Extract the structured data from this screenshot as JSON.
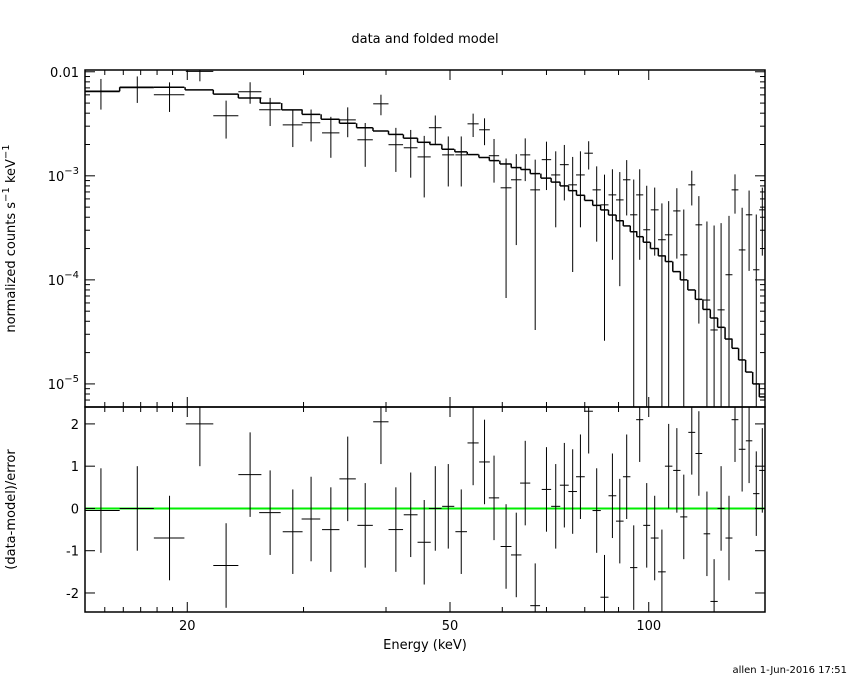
{
  "title": "data and folded model",
  "footer": "allen  1-Jun-2016 17:51",
  "chart_data": [
    {
      "type": "errorbar",
      "log_x": true,
      "log_y": true,
      "color": "#000000",
      "model_color": "#000000",
      "ylabel": [
        "normalized counts s",
        "−1",
        "  keV",
        "−1"
      ],
      "xlim": [
        14,
        150
      ],
      "ylim": [
        6e-06,
        0.0104
      ],
      "xticks": [
        20,
        50,
        100
      ],
      "xminorticks": [
        15,
        16,
        17,
        18,
        19,
        30,
        40,
        60,
        70,
        80,
        90
      ],
      "yticks": [
        0.01,
        {
          "value": 0.001,
          "label": "10",
          "exponent": "−3"
        },
        {
          "value": 0.0001,
          "label": "10",
          "exponent": "−4"
        },
        {
          "value": 1e-05,
          "label": "10",
          "exponent": "−5"
        }
      ],
      "yminorticks": [
        7e-06,
        8e-06,
        9e-06,
        2e-05,
        3e-05,
        4e-05,
        5e-05,
        6e-05,
        7e-05,
        8e-05,
        9e-05,
        0.0002,
        0.0003,
        0.0004,
        0.0005,
        0.0006,
        0.0007,
        0.0008,
        0.0009,
        0.002,
        0.003,
        0.004,
        0.005,
        0.006,
        0.007,
        0.008,
        0.009
      ],
      "x": [
        14.8,
        16.8,
        18.8,
        20.9,
        22.9,
        24.9,
        26.7,
        28.9,
        30.8,
        33.0,
        35.0,
        37.2,
        39.3,
        41.4,
        43.6,
        45.7,
        47.5,
        49.7,
        52.0,
        54.2,
        56.4,
        58.3,
        60.8,
        63.0,
        65.0,
        67.3,
        70.0,
        72.3,
        74.5,
        76.7,
        78.8,
        81.1,
        83.4,
        85.7,
        88.1,
        90.4,
        92.6,
        94.9,
        96.9,
        99.3,
        102.1,
        104.7,
        107.2,
        110.3,
        113.0,
        116.2,
        119.1,
        122.5,
        125.6,
        128.7,
        132.3,
        135.1,
        138.5,
        141.9,
        145.5,
        148.6
      ],
      "xerr": [
        1.0,
        1.0,
        1.0,
        1.0,
        1.0,
        1.0,
        1.0,
        1.0,
        1.0,
        1.0,
        1.0,
        1.0,
        1.05,
        1.05,
        1.05,
        1.05,
        1.05,
        1.05,
        1.05,
        1.05,
        1.05,
        1.05,
        1.15,
        1.15,
        1.15,
        1.15,
        1.15,
        1.15,
        1.15,
        1.15,
        1.2,
        1.2,
        1.2,
        1.2,
        1.2,
        1.2,
        1.2,
        1.2,
        1.2,
        1.2,
        1.4,
        1.4,
        1.4,
        1.4,
        1.4,
        1.4,
        1.4,
        1.4,
        1.6,
        1.6,
        1.6,
        1.6,
        1.6,
        1.6,
        1.6,
        1.6
      ],
      "values": [
        0.00643,
        0.00702,
        0.00601,
        0.0101,
        0.00378,
        0.00643,
        0.00431,
        0.00309,
        0.00324,
        0.00259,
        0.00345,
        0.00222,
        0.00492,
        0.00199,
        0.00186,
        0.00152,
        0.0029,
        0.00159,
        0.00159,
        0.00316,
        0.00277,
        0.00156,
        0.000767,
        0.000916,
        0.00159,
        0.000733,
        0.00143,
        0.00102,
        0.00128,
        0.000819,
        0.00102,
        0.00165,
        0.000733,
        0.000526,
        0.000656,
        0.000587,
        0.000916,
        0.000422,
        0.000656,
        0.000303,
        0.000471,
        0.000243,
        0.000271,
        0.00046,
        0.000174,
        0.000819,
        0.000338,
        6.4e-05,
        3.3e-05,
        5.15e-05,
        0.000112,
        0.000733,
        0.000194,
        0.000422,
        0.000125,
        0.000471
      ],
      "yerr": [
        0.0021,
        0.002,
        0.0019,
        0.002,
        0.0015,
        0.0015,
        0.0013,
        0.0012,
        0.0011,
        0.0011,
        0.0011,
        0.001,
        0.0011,
        0.0009,
        0.0009,
        0.0009,
        0.0009,
        0.0008,
        0.0008,
        0.0008,
        0.0008,
        0.0007,
        0.0007,
        0.0007,
        0.0007,
        0.0007,
        0.0007,
        0.0007,
        0.0007,
        0.0007,
        0.0007,
        0.0005,
        0.0005,
        0.0005,
        0.0005,
        0.0005,
        0.0005,
        0.0005,
        0.0005,
        0.0005,
        0.0003,
        0.0003,
        0.0003,
        0.0003,
        0.0003,
        0.0003,
        0.0003,
        0.0003,
        0.0003,
        0.0003,
        0.0003,
        0.0003,
        0.0003,
        0.0003,
        0.0003,
        0.0003
      ],
      "model": [
        0.0065,
        0.0071,
        0.0071,
        0.0067,
        0.0061,
        0.0056,
        0.005,
        0.0043,
        0.0039,
        0.0035,
        0.0032,
        0.0029,
        0.0027,
        0.0025,
        0.0023,
        0.0021,
        0.002,
        0.0018,
        0.0017,
        0.0016,
        0.0015,
        0.0014,
        0.0013,
        0.0012,
        0.00115,
        0.00105,
        0.00095,
        0.00087,
        0.0008,
        0.00072,
        0.00065,
        0.00058,
        0.00052,
        0.00047,
        0.00042,
        0.00037,
        0.00033,
        0.00029,
        0.00026,
        0.00023,
        0.0002,
        0.00017,
        0.00015,
        0.00012,
        0.0001,
        8e-05,
        6.5e-05,
        5.2e-05,
        4.3e-05,
        3.5e-05,
        2.7e-05,
        2.2e-05,
        1.7e-05,
        1.3e-05,
        1e-05,
        7.5e-06
      ]
    },
    {
      "type": "residual",
      "log_x": true,
      "log_y": false,
      "color": "#000000",
      "ylabel": [
        "(data-model)/error"
      ],
      "xlabel": "Energy (keV)",
      "hline": 0,
      "hline_color": "#00ee00",
      "xlim": [
        14,
        150
      ],
      "ylim": [
        -2.45,
        2.4
      ],
      "xticks": [
        20,
        50,
        100
      ],
      "xminorticks": [
        15,
        16,
        17,
        18,
        19,
        30,
        40,
        60,
        70,
        80,
        90
      ],
      "yticks": [
        -2,
        -1,
        0,
        1,
        2
      ],
      "x": [
        14.8,
        16.8,
        18.8,
        20.9,
        22.9,
        24.9,
        26.7,
        28.9,
        30.8,
        33.0,
        35.0,
        37.2,
        39.3,
        41.4,
        43.6,
        45.7,
        47.5,
        49.7,
        52.0,
        54.2,
        56.4,
        58.3,
        60.8,
        63.0,
        65.0,
        67.3,
        70.0,
        72.3,
        74.5,
        76.7,
        78.8,
        81.1,
        83.4,
        85.7,
        88.1,
        90.4,
        92.6,
        94.9,
        96.9,
        99.3,
        102.1,
        104.7,
        107.2,
        110.3,
        113.0,
        116.2,
        119.1,
        122.5,
        125.6,
        128.7,
        132.3,
        135.1,
        138.5,
        141.9,
        145.5,
        148.6
      ],
      "xerr": [
        1.0,
        1.0,
        1.0,
        1.0,
        1.0,
        1.0,
        1.0,
        1.0,
        1.0,
        1.0,
        1.0,
        1.0,
        1.05,
        1.05,
        1.05,
        1.05,
        1.05,
        1.05,
        1.05,
        1.05,
        1.05,
        1.05,
        1.15,
        1.15,
        1.15,
        1.15,
        1.15,
        1.15,
        1.15,
        1.15,
        1.2,
        1.2,
        1.2,
        1.2,
        1.2,
        1.2,
        1.2,
        1.2,
        1.2,
        1.2,
        1.4,
        1.4,
        1.4,
        1.4,
        1.4,
        1.4,
        1.4,
        1.4,
        1.6,
        1.6,
        1.6,
        1.6,
        1.6,
        1.6,
        1.6,
        1.6
      ],
      "values": [
        -0.05,
        0,
        -0.7,
        2.0,
        -1.35,
        0.8,
        -0.1,
        -0.55,
        -0.25,
        -0.5,
        0.7,
        -0.4,
        2.05,
        -0.5,
        -0.15,
        -0.8,
        0,
        0.05,
        -0.55,
        1.55,
        1.1,
        0.25,
        -0.9,
        -1.1,
        0.6,
        -2.3,
        0.45,
        0.05,
        0.55,
        0.4,
        0.75,
        2.3,
        -0.05,
        -2.1,
        0.3,
        -0.3,
        0.75,
        -1.4,
        2.1,
        -0.4,
        -0.7,
        -1.5,
        1,
        0.9,
        -0.2,
        1.8,
        1.3,
        -0.6,
        -2.2,
        0,
        -0.7,
        2.1,
        1.4,
        1.6,
        0.35,
        0.9
      ],
      "yerr": [
        1,
        1,
        1,
        1,
        1,
        1,
        1,
        1,
        1,
        1,
        1,
        1,
        1,
        1,
        1,
        1,
        1,
        1,
        1,
        1,
        1,
        1,
        1,
        1,
        1,
        1,
        1,
        1,
        1,
        1,
        1,
        1,
        1,
        1,
        1,
        1,
        1,
        1,
        1,
        1,
        1,
        1,
        1,
        1,
        1,
        1,
        1,
        1,
        1,
        1,
        1,
        1,
        1,
        1,
        1,
        1
      ]
    }
  ]
}
